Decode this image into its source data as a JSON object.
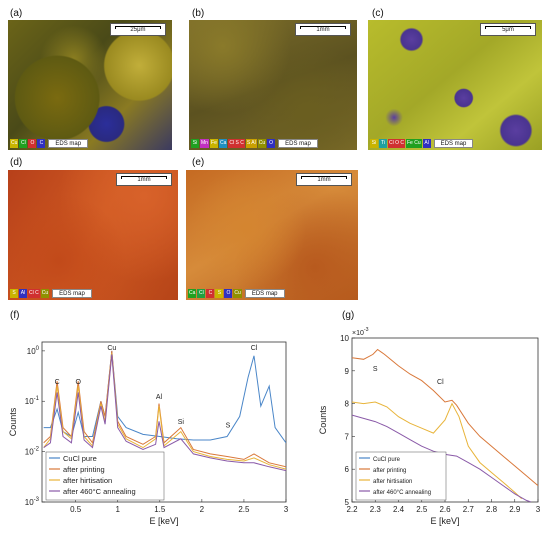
{
  "panels": {
    "a": {
      "label": "(a)",
      "scale": "25μm",
      "legend": [
        {
          "t": "Cu",
          "c": "#c9b400"
        },
        {
          "t": "Cl",
          "c": "#20a020"
        },
        {
          "t": "O",
          "c": "#d03030"
        },
        {
          "t": "C",
          "c": "#3030c0"
        }
      ],
      "eds": "EDS map"
    },
    "b": {
      "label": "(b)",
      "scale": "1mm",
      "legend": [
        {
          "t": "Si",
          "c": "#20a020"
        },
        {
          "t": "Mn",
          "c": "#c030c0"
        },
        {
          "t": "Fe",
          "c": "#c9b400"
        },
        {
          "t": "Ca",
          "c": "#2090c0"
        },
        {
          "t": "Cl S C",
          "c": "#d03030"
        },
        {
          "t": "S Al",
          "c": "#c9a000"
        },
        {
          "t": "Cu",
          "c": "#909000"
        },
        {
          "t": "O",
          "c": "#3030c0"
        }
      ],
      "eds": "EDS map"
    },
    "c": {
      "label": "(c)",
      "scale": "5μm",
      "legend": [
        {
          "t": "Si",
          "c": "#c9b400"
        },
        {
          "t": "Ti",
          "c": "#20a0a0"
        },
        {
          "t": "Cl O C",
          "c": "#d03030"
        },
        {
          "t": "Fe Cu",
          "c": "#20a020"
        },
        {
          "t": "Al",
          "c": "#3030c0"
        }
      ],
      "eds": "EDS map"
    },
    "d": {
      "label": "(d)",
      "scale": "1mm",
      "legend": [
        {
          "t": "S",
          "c": "#c9b400"
        },
        {
          "t": "Al",
          "c": "#3030c0"
        },
        {
          "t": "Cl C",
          "c": "#d03030"
        },
        {
          "t": "Cu",
          "c": "#909000"
        }
      ],
      "eds": "EDS map"
    },
    "e": {
      "label": "(e)",
      "scale": "1mm",
      "legend": [
        {
          "t": "Ca",
          "c": "#20a020"
        },
        {
          "t": "Cl",
          "c": "#20a040"
        },
        {
          "t": "C",
          "c": "#d03030"
        },
        {
          "t": "S",
          "c": "#c9b400"
        },
        {
          "t": "O",
          "c": "#3030c0"
        },
        {
          "t": "Cu",
          "c": "#909000"
        }
      ],
      "eds": "EDS map"
    },
    "f": {
      "label": "(f)"
    },
    "g": {
      "label": "(g)"
    }
  },
  "chart_data": [
    {
      "type": "line",
      "panel": "f",
      "xlabel": "E [keV]",
      "ylabel": "Counts",
      "xlim": [
        0.1,
        3
      ],
      "ylim": [
        0.001,
        1.5
      ],
      "yscale": "log",
      "xticks": [
        "0.5",
        "1",
        "1.5",
        "2",
        "2.5",
        "3"
      ],
      "yticks": [
        "10^{-3}",
        "10^{-2}",
        "10^{-1}",
        "10^{0}"
      ],
      "annotations": [
        {
          "text": "Cu",
          "x": 0.93,
          "y": 1.9
        },
        {
          "text": "Cl",
          "x": 2.62,
          "y": 1.9
        },
        {
          "text": "C",
          "x": 0.28,
          "y": 0.22
        },
        {
          "text": "O",
          "x": 0.53,
          "y": 0.22
        },
        {
          "text": "Al",
          "x": 1.49,
          "y": 0.11
        },
        {
          "text": "Si",
          "x": 1.75,
          "y": 0.035
        },
        {
          "text": "S",
          "x": 2.31,
          "y": 0.03
        }
      ],
      "legend_position": "lower-left",
      "series": [
        {
          "name": "CuCl pure",
          "color": "#4a86c8",
          "points": [
            [
              0.12,
              0.03
            ],
            [
              0.2,
              0.03
            ],
            [
              0.28,
              0.07
            ],
            [
              0.35,
              0.025
            ],
            [
              0.45,
              0.02
            ],
            [
              0.53,
              0.06
            ],
            [
              0.6,
              0.02
            ],
            [
              0.7,
              0.02
            ],
            [
              0.8,
              0.1
            ],
            [
              0.85,
              0.05
            ],
            [
              0.93,
              1.0
            ],
            [
              1.0,
              0.05
            ],
            [
              1.1,
              0.03
            ],
            [
              1.3,
              0.022
            ],
            [
              1.5,
              0.02
            ],
            [
              1.7,
              0.018
            ],
            [
              1.9,
              0.017
            ],
            [
              2.1,
              0.017
            ],
            [
              2.3,
              0.02
            ],
            [
              2.45,
              0.05
            ],
            [
              2.55,
              0.3
            ],
            [
              2.62,
              0.8
            ],
            [
              2.7,
              0.08
            ],
            [
              2.8,
              0.2
            ],
            [
              2.87,
              0.03
            ],
            [
              3.0,
              0.015
            ]
          ]
        },
        {
          "name": "after printing",
          "color": "#d9783a",
          "points": [
            [
              0.12,
              0.015
            ],
            [
              0.2,
              0.02
            ],
            [
              0.28,
              0.25
            ],
            [
              0.35,
              0.03
            ],
            [
              0.45,
              0.02
            ],
            [
              0.53,
              0.25
            ],
            [
              0.6,
              0.025
            ],
            [
              0.7,
              0.015
            ],
            [
              0.8,
              0.1
            ],
            [
              0.85,
              0.05
            ],
            [
              0.93,
              1.0
            ],
            [
              1.0,
              0.04
            ],
            [
              1.1,
              0.02
            ],
            [
              1.3,
              0.014
            ],
            [
              1.45,
              0.02
            ],
            [
              1.49,
              0.09
            ],
            [
              1.55,
              0.015
            ],
            [
              1.75,
              0.03
            ],
            [
              1.9,
              0.011
            ],
            [
              2.1,
              0.009
            ],
            [
              2.3,
              0.008
            ],
            [
              2.5,
              0.007
            ],
            [
              2.62,
              0.009
            ],
            [
              2.8,
              0.006
            ],
            [
              3.0,
              0.005
            ]
          ]
        },
        {
          "name": "after hirtisation",
          "color": "#e8b43a",
          "points": [
            [
              0.12,
              0.012
            ],
            [
              0.2,
              0.018
            ],
            [
              0.28,
              0.2
            ],
            [
              0.35,
              0.025
            ],
            [
              0.45,
              0.018
            ],
            [
              0.53,
              0.2
            ],
            [
              0.6,
              0.02
            ],
            [
              0.7,
              0.013
            ],
            [
              0.8,
              0.09
            ],
            [
              0.85,
              0.04
            ],
            [
              0.93,
              0.9
            ],
            [
              1.0,
              0.035
            ],
            [
              1.1,
              0.018
            ],
            [
              1.3,
              0.012
            ],
            [
              1.45,
              0.018
            ],
            [
              1.49,
              0.08
            ],
            [
              1.55,
              0.013
            ],
            [
              1.75,
              0.025
            ],
            [
              1.9,
              0.01
            ],
            [
              2.1,
              0.008
            ],
            [
              2.3,
              0.007
            ],
            [
              2.5,
              0.0065
            ],
            [
              2.62,
              0.0075
            ],
            [
              2.8,
              0.0055
            ],
            [
              3.0,
              0.0045
            ]
          ]
        },
        {
          "name": "after 460°C annealing",
          "color": "#8a5aa8",
          "points": [
            [
              0.12,
              0.012
            ],
            [
              0.2,
              0.015
            ],
            [
              0.28,
              0.15
            ],
            [
              0.35,
              0.02
            ],
            [
              0.45,
              0.015
            ],
            [
              0.53,
              0.15
            ],
            [
              0.6,
              0.017
            ],
            [
              0.7,
              0.012
            ],
            [
              0.8,
              0.08
            ],
            [
              0.85,
              0.035
            ],
            [
              0.93,
              0.85
            ],
            [
              1.0,
              0.03
            ],
            [
              1.1,
              0.016
            ],
            [
              1.3,
              0.011
            ],
            [
              1.45,
              0.014
            ],
            [
              1.49,
              0.04
            ],
            [
              1.55,
              0.012
            ],
            [
              1.75,
              0.018
            ],
            [
              1.9,
              0.009
            ],
            [
              2.1,
              0.0075
            ],
            [
              2.3,
              0.0065
            ],
            [
              2.5,
              0.006
            ],
            [
              2.62,
              0.006
            ],
            [
              2.8,
              0.005
            ],
            [
              3.0,
              0.0042
            ]
          ]
        }
      ]
    },
    {
      "type": "line",
      "panel": "g",
      "xlabel": "E [keV]",
      "ylabel": "Counts",
      "yexponent": "×10^{-3}",
      "xlim": [
        2.2,
        3.0
      ],
      "ylim": [
        5,
        10
      ],
      "xticks": [
        "2.2",
        "2.3",
        "2.4",
        "2.5",
        "2.6",
        "2.7",
        "2.8",
        "2.9",
        "3"
      ],
      "yticks": [
        "5",
        "6",
        "7",
        "8",
        "9",
        "10"
      ],
      "annotations": [
        {
          "text": "S",
          "x": 2.3,
          "y": 9.0
        },
        {
          "text": "Cl",
          "x": 2.58,
          "y": 8.6
        }
      ],
      "legend_position": "lower-left",
      "series": [
        {
          "name": "CuCl pure",
          "color": "#4a86c8",
          "points": []
        },
        {
          "name": "after printing",
          "color": "#d9783a",
          "points": [
            [
              2.2,
              9.4
            ],
            [
              2.25,
              9.35
            ],
            [
              2.29,
              9.5
            ],
            [
              2.31,
              9.65
            ],
            [
              2.34,
              9.5
            ],
            [
              2.4,
              9.15
            ],
            [
              2.45,
              8.9
            ],
            [
              2.5,
              8.7
            ],
            [
              2.55,
              8.4
            ],
            [
              2.6,
              8.05
            ],
            [
              2.63,
              8.1
            ],
            [
              2.65,
              7.95
            ],
            [
              2.7,
              7.4
            ],
            [
              2.75,
              7.0
            ],
            [
              2.8,
              6.7
            ],
            [
              2.85,
              6.4
            ],
            [
              2.9,
              6.1
            ],
            [
              2.95,
              5.8
            ],
            [
              3.0,
              5.5
            ]
          ]
        },
        {
          "name": "after hirtisation",
          "color": "#e8b43a",
          "points": [
            [
              2.2,
              8.05
            ],
            [
              2.25,
              8.0
            ],
            [
              2.3,
              8.05
            ],
            [
              2.35,
              7.9
            ],
            [
              2.4,
              7.6
            ],
            [
              2.45,
              7.4
            ],
            [
              2.5,
              7.25
            ],
            [
              2.55,
              7.1
            ],
            [
              2.6,
              7.5
            ],
            [
              2.63,
              8.0
            ],
            [
              2.66,
              7.6
            ],
            [
              2.7,
              6.7
            ],
            [
              2.75,
              6.2
            ],
            [
              2.8,
              5.9
            ],
            [
              2.85,
              5.6
            ],
            [
              2.9,
              5.3
            ],
            [
              2.93,
              5.1
            ]
          ]
        },
        {
          "name": "after 460°C annealing",
          "color": "#8a5aa8",
          "points": [
            [
              2.2,
              7.65
            ],
            [
              2.25,
              7.55
            ],
            [
              2.3,
              7.45
            ],
            [
              2.35,
              7.3
            ],
            [
              2.4,
              7.1
            ],
            [
              2.45,
              6.9
            ],
            [
              2.5,
              6.7
            ],
            [
              2.55,
              6.55
            ],
            [
              2.6,
              6.45
            ],
            [
              2.65,
              6.4
            ],
            [
              2.7,
              6.2
            ],
            [
              2.75,
              6.0
            ],
            [
              2.8,
              5.75
            ],
            [
              2.85,
              5.5
            ],
            [
              2.9,
              5.25
            ],
            [
              2.95,
              5.05
            ],
            [
              2.97,
              5.0
            ]
          ]
        }
      ]
    }
  ]
}
